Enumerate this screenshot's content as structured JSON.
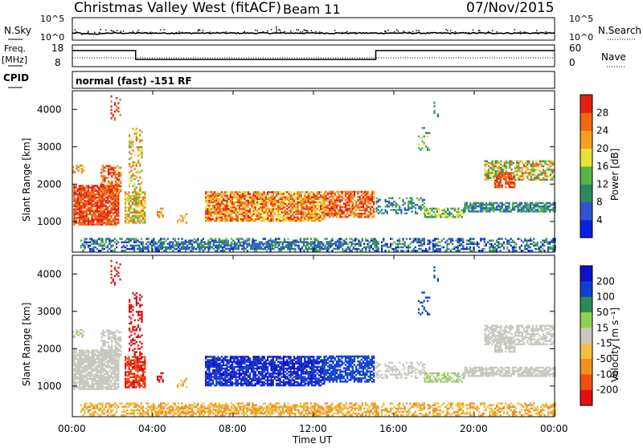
{
  "header": {
    "station": "Christmas Valley West (fitACF)",
    "beam": "Beam 11",
    "date": "07/Nov/2015"
  },
  "status_panels": {
    "nsky": {
      "label": "N.Sky",
      "ticks": [
        "10^5",
        "10^0"
      ]
    },
    "nsearch": {
      "label": "N.Search",
      "ticks": [
        "10^5",
        "10^0"
      ]
    },
    "freq": {
      "label": "Freq.",
      "unit": "[MHz]",
      "ticks": [
        "18",
        "8"
      ]
    },
    "nave": {
      "label": "Nave",
      "ticks": [
        "60",
        "0"
      ]
    },
    "cpid": {
      "label": "CPID",
      "value": "normal (fast) -151 RF"
    }
  },
  "chart_data": [
    {
      "type": "heatmap",
      "name": "power",
      "ylabel": "Slant Range [km]",
      "xlabel": "Time UT",
      "x_ticks": [
        "00:00",
        "04:00",
        "08:00",
        "12:00",
        "16:00",
        "20:00",
        "00:00"
      ],
      "xlim_hours": [
        0,
        24
      ],
      "ylim_km": [
        180,
        4500
      ],
      "y_ticks": [
        1000,
        2000,
        3000,
        4000
      ],
      "colorbar": {
        "label": "Power [dB]",
        "ticks": [
          4,
          8,
          12,
          16,
          20,
          24,
          28
        ],
        "range": [
          0,
          30
        ]
      }
    },
    {
      "type": "heatmap",
      "name": "velocity",
      "ylabel": "Slant Range [km]",
      "xlabel": "Time UT",
      "x_ticks": [
        "00:00",
        "04:00",
        "08:00",
        "12:00",
        "16:00",
        "20:00",
        "00:00"
      ],
      "xlim_hours": [
        0,
        24
      ],
      "ylim_km": [
        180,
        4500
      ],
      "y_ticks": [
        1000,
        2000,
        3000,
        4000
      ],
      "colorbar": {
        "label": "Velocity [m s⁻¹]",
        "ticks": [
          200,
          100,
          50,
          15,
          -15,
          -50,
          -100,
          -200
        ]
      }
    }
  ],
  "colors": {
    "power": [
      "#0a1fe0",
      "#2e55d0",
      "#2e8a5a",
      "#55b34a",
      "#e8e23a",
      "#f5a020",
      "#f06a10",
      "#e02010"
    ],
    "velocity": [
      "#e01010",
      "#f05010",
      "#f09020",
      "#f0c040",
      "#c8c8c0",
      "#90d050",
      "#2e8a50",
      "#1040d0",
      "#1010c8"
    ]
  }
}
